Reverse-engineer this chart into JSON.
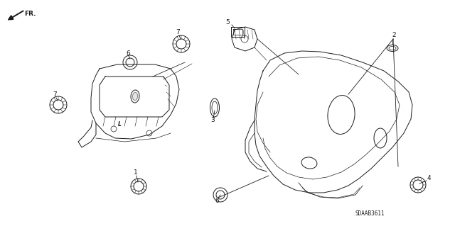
{
  "background_color": "#ffffff",
  "diagram_code": "SDAAB3611",
  "line_color": "#1a1a1a",
  "gray_color": "#888888",
  "lw": 0.7
}
